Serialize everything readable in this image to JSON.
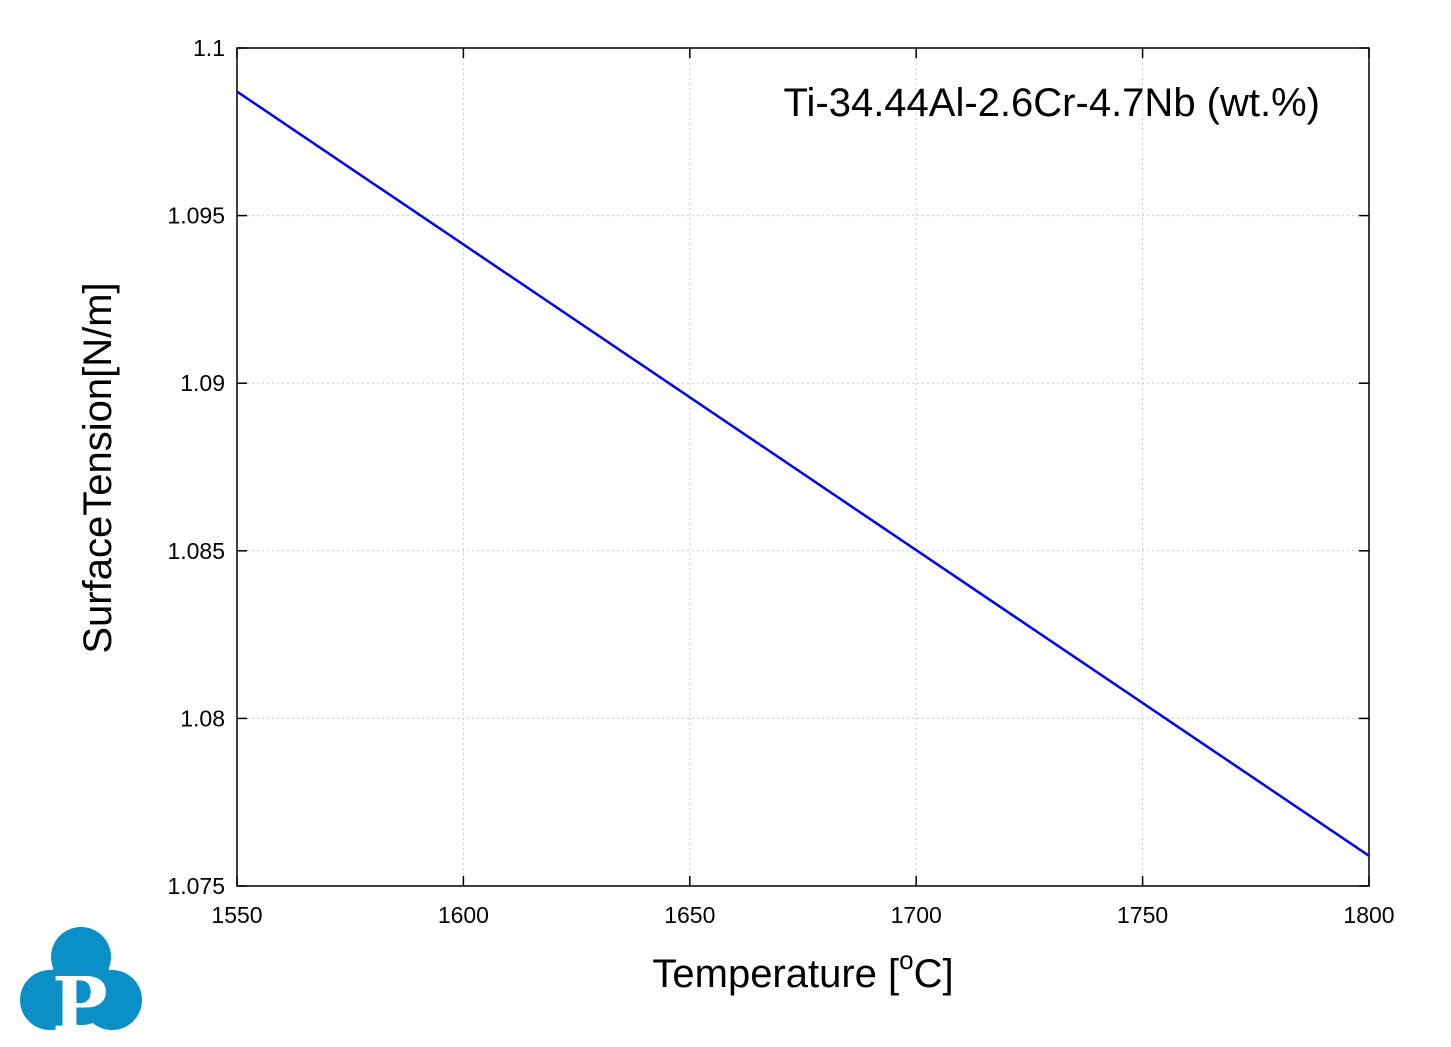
{
  "chart_data": {
    "type": "line",
    "title": "",
    "annotation": "Ti-34.44Al-2.6Cr-4.7Nb (wt.%)",
    "xlabel": "Temperature [",
    "xlabel_sup": "o",
    "xlabel_end": "C]",
    "ylabel": "SurfaceTension[N/m]",
    "xlim": [
      1550,
      1800
    ],
    "ylim": [
      1.075,
      1.1
    ],
    "xticks": [
      1550,
      1600,
      1650,
      1700,
      1750,
      1800
    ],
    "xtick_labels": [
      "1550",
      "1600",
      "1650",
      "1700",
      "1750",
      "1800"
    ],
    "yticks": [
      1.075,
      1.08,
      1.085,
      1.09,
      1.095,
      1.1
    ],
    "ytick_labels": [
      "1.075",
      "1.08",
      "1.085",
      "1.09",
      "1.095",
      "1.1"
    ],
    "grid": true,
    "series": [
      {
        "color": "#0000ee",
        "x": [
          1550,
          1800
        ],
        "y": [
          1.0987,
          1.0759
        ]
      }
    ]
  },
  "logo": {
    "letter": "P",
    "color": "#0a8fc6"
  }
}
